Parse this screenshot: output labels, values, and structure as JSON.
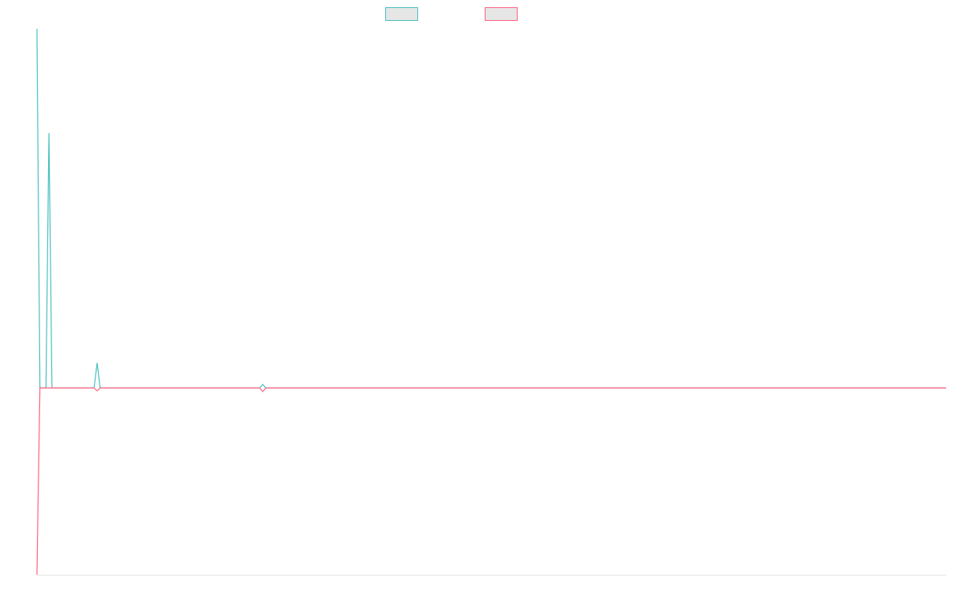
{
  "chart_data": {
    "type": "line",
    "x": [
      0,
      1,
      3,
      4,
      5,
      19,
      20,
      21,
      74,
      75,
      76,
      302
    ],
    "series": [
      {
        "color": "#4bc0c0",
        "values": [
          100,
          0,
          0,
          71,
          0,
          0,
          7,
          0,
          0,
          1,
          0,
          0
        ]
      },
      {
        "color": "#ff6384",
        "values": [
          -52,
          0,
          0,
          0,
          0,
          0,
          -0.8,
          0,
          0,
          -1,
          0,
          0
        ]
      }
    ],
    "xlim": [
      0,
      302
    ],
    "ylim": [
      -52,
      100
    ],
    "grid": false
  }
}
